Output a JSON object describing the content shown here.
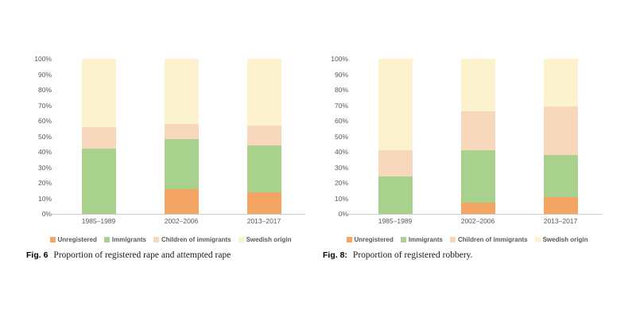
{
  "page": {
    "background": "#ffffff"
  },
  "colors": {
    "axis_text": "#595959",
    "legend_text": "#595959",
    "axis_line": "#cccccc",
    "caption_text": "#1a1a1a"
  },
  "chart_data": [
    {
      "type": "bar",
      "stacked": true,
      "units": "percent",
      "fig_label": "Fig. 6",
      "caption": "Proportion of registered rape and attempted rape",
      "categories": [
        "1985–1989",
        "2002–2006",
        "2013–2017"
      ],
      "series": [
        {
          "name": "Unregistered",
          "color": "#F5A563",
          "values": [
            0,
            16,
            14
          ]
        },
        {
          "name": "Immigrants",
          "color": "#A9D18E",
          "values": [
            42,
            32,
            30
          ]
        },
        {
          "name": "Children of immigrants",
          "color": "#F8D8BD",
          "values": [
            14,
            10,
            13
          ]
        },
        {
          "name": "Swedish origin",
          "color": "#FDF2CE",
          "values": [
            44,
            42,
            43
          ]
        }
      ],
      "ylim": [
        0,
        100
      ],
      "ytick_step": 10,
      "ytick_suffix": "%",
      "grid": false,
      "legend_position": "bottom"
    },
    {
      "type": "bar",
      "stacked": true,
      "units": "percent",
      "fig_label": "Fig. 8:",
      "caption": "Proportion of registered robbery.",
      "categories": [
        "1985–1989",
        "2002–2006",
        "2013–2017"
      ],
      "series": [
        {
          "name": "Unregistered",
          "color": "#F5A563",
          "values": [
            0,
            7,
            11
          ]
        },
        {
          "name": "Immigrants",
          "color": "#A9D18E",
          "values": [
            24,
            34,
            27
          ]
        },
        {
          "name": "Children of immigrants",
          "color": "#F8D8BD",
          "values": [
            17,
            25,
            31
          ]
        },
        {
          "name": "Swedish origin",
          "color": "#FDF2CE",
          "values": [
            59,
            34,
            31
          ]
        }
      ],
      "ylim": [
        0,
        100
      ],
      "ytick_step": 10,
      "ytick_suffix": "%",
      "grid": false,
      "legend_position": "bottom"
    }
  ]
}
